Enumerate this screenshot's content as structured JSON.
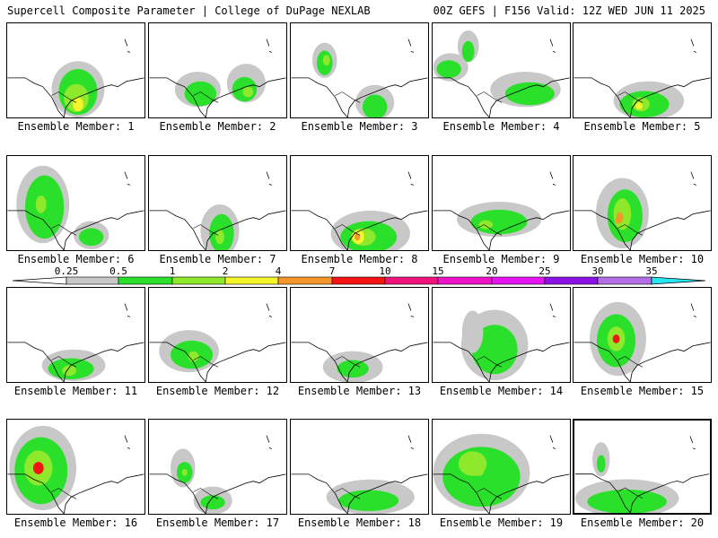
{
  "header": {
    "left": "Supercell Composite Parameter | College of DuPage NEXLAB",
    "right": "00Z GEFS | F156 Valid: 12Z WED JUN 11 2025"
  },
  "colorbar": {
    "labels": [
      "0.25",
      "0.5",
      "1",
      "2",
      "4",
      "7",
      "10",
      "15",
      "20",
      "25",
      "30",
      "35"
    ],
    "colors": [
      "#c8c8c8",
      "#2be02b",
      "#8ee82b",
      "#f5f52b",
      "#f5962b",
      "#f51414",
      "#f0147d",
      "#f014c8",
      "#e614f0",
      "#8c14e6",
      "#b46ee6",
      "#28e6f0"
    ]
  },
  "members": [
    {
      "label": "Ensemble Member: 1"
    },
    {
      "label": "Ensemble Member: 2"
    },
    {
      "label": "Ensemble Member: 3"
    },
    {
      "label": "Ensemble Member: 4"
    },
    {
      "label": "Ensemble Member: 5"
    },
    {
      "label": "Ensemble Member: 6"
    },
    {
      "label": "Ensemble Member: 7"
    },
    {
      "label": "Ensemble Member: 8"
    },
    {
      "label": "Ensemble Member: 9"
    },
    {
      "label": "Ensemble Member: 10"
    },
    {
      "label": "Ensemble Member: 11"
    },
    {
      "label": "Ensemble Member: 12"
    },
    {
      "label": "Ensemble Member: 13"
    },
    {
      "label": "Ensemble Member: 14"
    },
    {
      "label": "Ensemble Member: 15"
    },
    {
      "label": "Ensemble Member: 16"
    },
    {
      "label": "Ensemble Member: 17"
    },
    {
      "label": "Ensemble Member: 18"
    },
    {
      "label": "Ensemble Member: 19"
    },
    {
      "label": "Ensemble Member: 20"
    }
  ]
}
